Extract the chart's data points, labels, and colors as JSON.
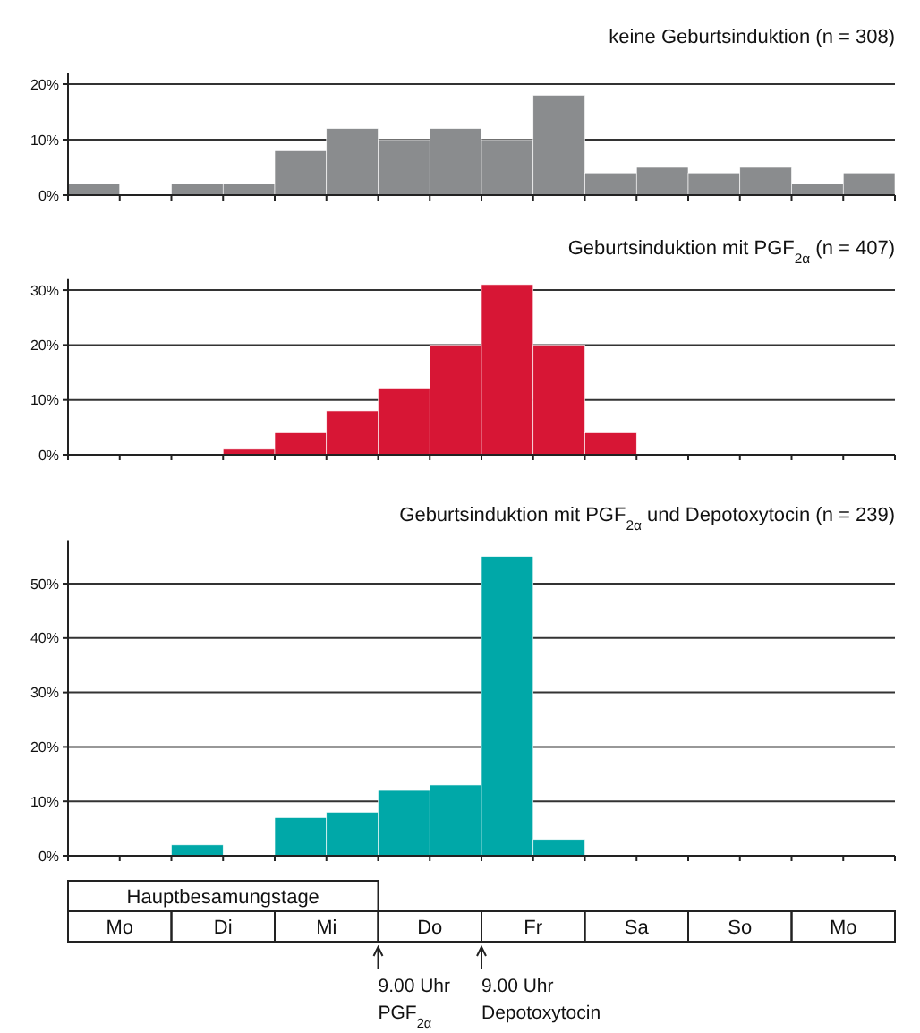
{
  "chart_data": [
    {
      "type": "bar",
      "title": "keine Geburtsinduktion (n = 308)",
      "categories": [
        null,
        null,
        null,
        null,
        null,
        null,
        null,
        null,
        null,
        null,
        null,
        null,
        null,
        null,
        null,
        null
      ],
      "values": [
        2,
        0,
        2,
        2,
        8,
        12,
        10,
        12,
        10,
        18,
        4,
        5,
        4,
        5,
        2,
        4
      ],
      "color": "#8a8c8e",
      "ylim": [
        0,
        22
      ],
      "yticks": [
        {
          "value": 0,
          "label": "0%"
        },
        {
          "value": 10,
          "label": "10%"
        },
        {
          "value": 20,
          "label": "20%"
        }
      ],
      "grid": "y"
    },
    {
      "type": "bar",
      "title": "Geburtsinduktion mit PGF$_{2α}$ (n = 407)",
      "categories": [
        null,
        null,
        null,
        null,
        null,
        null,
        null,
        null,
        null,
        null,
        null,
        null,
        null,
        null,
        null,
        null
      ],
      "values": [
        0,
        0,
        0,
        1,
        4,
        8,
        12,
        20,
        31,
        20,
        4,
        0,
        0,
        0,
        0,
        0
      ],
      "color": "#d71635",
      "ylim": [
        0,
        32
      ],
      "yticks": [
        {
          "value": 0,
          "label": "0%"
        },
        {
          "value": 10,
          "label": "10%"
        },
        {
          "value": 20,
          "label": "20%"
        },
        {
          "value": 30,
          "label": "30%"
        }
      ],
      "grid": "y"
    },
    {
      "type": "bar",
      "title": "Geburtsinduktion mit PGF$_{2α}$ und Depotoxytocin (n = 239)",
      "categories": [
        null,
        null,
        null,
        null,
        null,
        null,
        null,
        null,
        null,
        null,
        null,
        null,
        null,
        null,
        null,
        null
      ],
      "values": [
        0,
        0,
        2,
        0,
        7,
        8,
        12,
        13,
        55,
        3,
        0,
        0,
        0,
        0,
        0,
        0
      ],
      "color": "#00a8a8",
      "ylim": [
        0,
        58
      ],
      "yticks": [
        {
          "value": 0,
          "label": "0%"
        },
        {
          "value": 10,
          "label": "10%"
        },
        {
          "value": 20,
          "label": "20%"
        },
        {
          "value": 30,
          "label": "30%"
        },
        {
          "value": 40,
          "label": "40%"
        },
        {
          "value": 50,
          "label": "50%"
        }
      ],
      "grid": "y",
      "annotations": [
        "Hauptbesamungstage",
        "Mo",
        "Di",
        "Mi",
        "Do",
        "Fr",
        "Sa",
        "So",
        "Mo",
        "9.00 Uhr\nPGF$_{2α}$",
        "9.00 Uhr\nDepotoxytocin"
      ]
    }
  ]
}
